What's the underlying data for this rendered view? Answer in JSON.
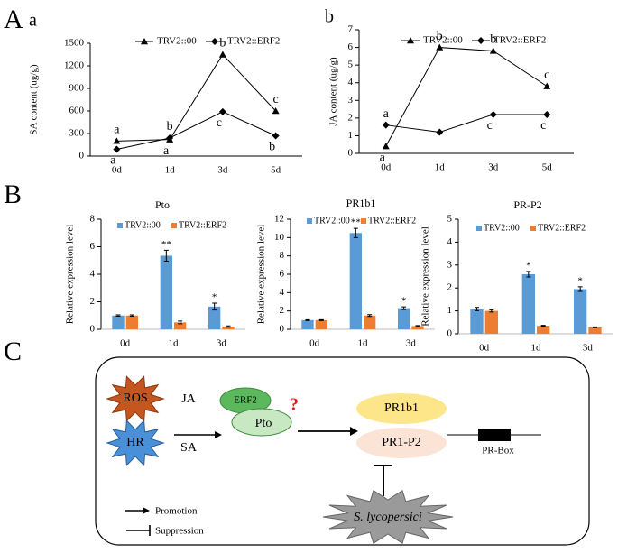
{
  "panel_labels": [
    "A",
    "a",
    "b",
    "B",
    "C"
  ],
  "chart_data": [
    {
      "type": "line",
      "ylabel": "SA content (ug/g)",
      "categories": [
        "0d",
        "1d",
        "3d",
        "5d"
      ],
      "ylim": [
        0,
        1500
      ],
      "yticks": [
        0,
        300,
        600,
        900,
        1200,
        1500
      ],
      "series": [
        {
          "name": "TRV2::00",
          "color": "#000000",
          "marker": "triangle",
          "values": [
            200,
            220,
            1350,
            600
          ],
          "labels": [
            "a",
            "a",
            "b",
            "c"
          ]
        },
        {
          "name": "TRV2::ERF2",
          "color": "#000000",
          "marker": "diamond",
          "values": [
            90,
            240,
            590,
            270
          ],
          "labels": [
            "a",
            "b",
            "c",
            "b"
          ]
        }
      ]
    },
    {
      "type": "line",
      "ylabel": "JA content (ug/g)",
      "categories": [
        "0d",
        "1d",
        "3d",
        "5d"
      ],
      "ylim": [
        0,
        7
      ],
      "yticks": [
        0,
        1,
        2,
        3,
        4,
        5,
        6,
        7
      ],
      "series": [
        {
          "name": "TRV2::00",
          "color": "#000000",
          "marker": "triangle",
          "values": [
            0.4,
            6.0,
            5.8,
            3.8
          ],
          "labels": [
            "a",
            "b",
            "b",
            "c"
          ]
        },
        {
          "name": "TRV2::ERF2",
          "color": "#000000",
          "marker": "diamond",
          "values": [
            1.6,
            1.2,
            2.2,
            2.2
          ],
          "labels": [
            "a",
            null,
            "c",
            "c"
          ]
        }
      ]
    },
    {
      "type": "bar",
      "title": "Pto",
      "ylabel": "Relative expression level",
      "categories": [
        "0d",
        "1d",
        "3d"
      ],
      "ylim": [
        0,
        8
      ],
      "yticks": [
        0,
        2,
        4,
        6,
        8
      ],
      "significance": [
        null,
        "**",
        "*"
      ],
      "series": [
        {
          "name": "TRV2::00",
          "color": "#5b9bd5",
          "values": [
            1.0,
            5.35,
            1.65
          ],
          "errors": [
            0.05,
            0.4,
            0.25
          ]
        },
        {
          "name": "TRV2::ERF2",
          "color": "#ed7d31",
          "values": [
            1.0,
            0.5,
            0.2
          ],
          "errors": [
            0.05,
            0.1,
            0.05
          ]
        }
      ]
    },
    {
      "type": "bar",
      "title": "PR1b1",
      "ylabel": "Relative expression level",
      "categories": [
        "0d",
        "1d",
        "3d"
      ],
      "ylim": [
        0,
        12
      ],
      "yticks": [
        0,
        2,
        4,
        6,
        8,
        10,
        12
      ],
      "significance": [
        null,
        "**",
        "*"
      ],
      "series": [
        {
          "name": "TRV2::00",
          "color": "#5b9bd5",
          "values": [
            1.0,
            10.5,
            2.3
          ],
          "errors": [
            0.05,
            0.5,
            0.15
          ]
        },
        {
          "name": "TRV2::ERF2",
          "color": "#ed7d31",
          "values": [
            1.0,
            1.5,
            0.35
          ],
          "errors": [
            0.05,
            0.1,
            0.05
          ]
        }
      ]
    },
    {
      "type": "bar",
      "title": "PR-P2",
      "ylabel": "Relative expression level",
      "categories": [
        "0d",
        "1d",
        "3d"
      ],
      "ylim": [
        0,
        5
      ],
      "yticks": [
        0,
        1,
        2,
        3,
        4,
        5
      ],
      "significance": [
        null,
        "*",
        "*"
      ],
      "series": [
        {
          "name": "TRV2::00",
          "color": "#5b9bd5",
          "values": [
            1.08,
            2.6,
            1.95
          ],
          "errors": [
            0.07,
            0.12,
            0.1
          ]
        },
        {
          "name": "TRV2::ERF2",
          "color": "#ed7d31",
          "values": [
            1.0,
            0.35,
            0.28
          ],
          "errors": [
            0.05,
            0.02,
            0.02
          ]
        }
      ]
    }
  ],
  "diagram": {
    "ros": "ROS",
    "hr": "HR",
    "ja": "JA",
    "sa": "SA",
    "erf2": "ERF2",
    "pto": "Pto",
    "question": "?",
    "pr1b1": "PR1b1",
    "pr1p2": "PR1-P2",
    "prbox": "PR-Box",
    "pathogen": "S. lycopersici",
    "promotion": "Promotion",
    "suppression": "Suppression"
  }
}
